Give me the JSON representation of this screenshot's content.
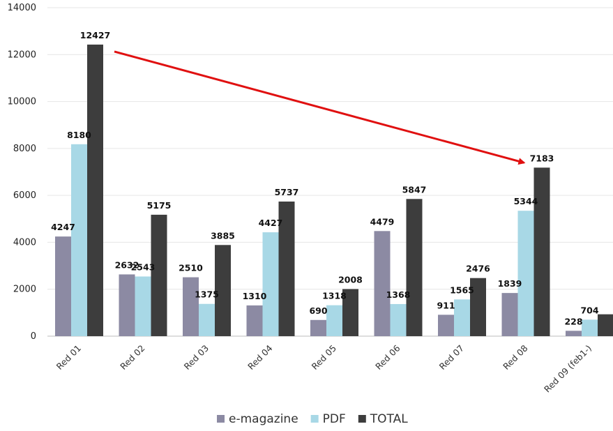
{
  "chart_data": {
    "type": "bar",
    "categories": [
      "Red 01",
      "Red 02",
      "Red 03",
      "Red 04",
      "Red 05",
      "Red 06",
      "Red 07",
      "Red 08",
      "Red 09 (feb1-)"
    ],
    "series": [
      {
        "name": "e-magazine",
        "color": "#8c8aa3",
        "values": [
          4247,
          2632,
          2510,
          1310,
          690,
          4479,
          911,
          1839,
          228
        ]
      },
      {
        "name": "PDF",
        "color": "#a8d8e6",
        "values": [
          8180,
          2543,
          1375,
          4427,
          1318,
          1368,
          1565,
          5344,
          704
        ]
      },
      {
        "name": "TOTAL",
        "color": "#3d3d3d",
        "values": [
          12427,
          5175,
          3885,
          5737,
          2008,
          5847,
          2476,
          7183,
          932
        ]
      }
    ],
    "data_labels": [
      [
        "4247",
        "2632",
        "2510",
        "1310",
        "690",
        "4479",
        "911",
        "1839",
        "228"
      ],
      [
        "8180",
        "2543",
        "1375",
        "4427",
        "1318",
        "1368",
        "1565",
        "5344",
        "704"
      ],
      [
        "12427",
        "5175",
        "3885",
        "5737",
        "2008",
        "5847",
        "2476",
        "7183",
        ""
      ]
    ],
    "yticks": [
      "0",
      "2000",
      "4000",
      "6000",
      "8000",
      "10000",
      "12000",
      "14000"
    ],
    "ylim": [
      0,
      14000
    ],
    "grid": true,
    "legend_position": "bottom",
    "annotation": {
      "type": "arrow",
      "from_category": "Red 01",
      "from_value": 12427,
      "to_category": "Red 08",
      "to_value": 7183,
      "color": "#e01010"
    }
  }
}
